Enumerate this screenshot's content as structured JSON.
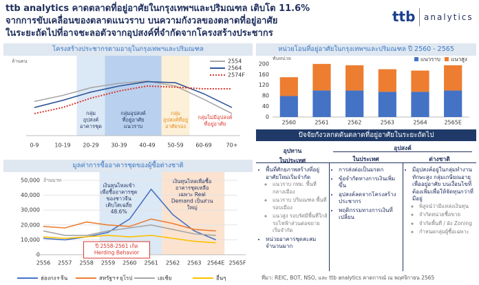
{
  "header": {
    "title": [
      "ttb analytics คาดตลาดที่อยู่อาศัยในกรุงเทพฯและปริมณฑล เติบโต 11.6%",
      "จากการขับเคลื่อนของตลาดแนวราบ บนความกังวลของตลาดที่อยู่อาศัย",
      "ในระยะถัดไปที่อาจชะลอตัวจากอุปสงค์ที่จำกัดจากโครงสร้างประชากร"
    ],
    "logo": {
      "brand": "ttb",
      "product": "analytics"
    }
  },
  "chart_data": [
    {
      "type": "line",
      "title": "โครงสร้างประชากรตามอายุในกรุงเทพฯและปริมณฑล",
      "ylabel": "ล้านคน",
      "categories": [
        "0-9",
        "10-19",
        "20-29",
        "30-39",
        "40-49",
        "50-59",
        "60-69",
        "70+"
      ],
      "ylim": [
        0.6,
        1.9
      ],
      "legend": "top-right",
      "series": [
        {
          "name": "2554",
          "color": "#a6a6a6",
          "style": "solid",
          "values": [
            1.22,
            1.33,
            1.47,
            1.55,
            1.59,
            1.5,
            1.26,
            1.0
          ]
        },
        {
          "name": "2564",
          "color": "#2f5597",
          "style": "solid",
          "values": [
            1.11,
            1.24,
            1.39,
            1.5,
            1.58,
            1.56,
            1.36,
            1.11
          ]
        },
        {
          "name": "2574F",
          "color": "#d9342b",
          "style": "dotted",
          "values": [
            1.0,
            1.11,
            1.28,
            1.41,
            1.5,
            1.48,
            1.45,
            1.45
          ]
        }
      ],
      "annotations": [
        {
          "text": [
            "กลุ่ม",
            "อุปสงค์",
            "อาคารชุด"
          ],
          "color": "#1f2f5c"
        },
        {
          "text": [
            "กลุ่มอุปสงค์",
            "ที่อยู่อาศัย",
            "แนวราบ"
          ],
          "color": "#1f2f5c"
        },
        {
          "text": [
            "กลุ่ม",
            "อุปสงค์ที่อยู่",
            "อาศัยรอง"
          ],
          "color": "#e08a1e"
        },
        {
          "text": [
            "กลุ่มไม่มีอุปสงค์",
            "ที่อยู่อาศัย"
          ],
          "color": "#d9342b"
        }
      ]
    },
    {
      "type": "bar",
      "stacked": true,
      "title": "หน่วยโอนที่อยู่อาศัยในกรุงเทพฯและปริมณฑล ปี 2560 - 2565",
      "ylabel": "พันหน่วย",
      "categories": [
        "2560",
        "2561",
        "2562",
        "2563",
        "2564",
        "2565E"
      ],
      "ylim": [
        0,
        210
      ],
      "yticks": [
        0,
        40,
        80,
        120,
        160,
        200
      ],
      "legend": "top-right",
      "series": [
        {
          "name": "แนวราบ",
          "color": "#4472c4",
          "values": [
            79,
            100,
            100,
            95,
            95,
            100
          ]
        },
        {
          "name": "แนวสูง",
          "color": "#ed7d31",
          "values": [
            71,
            100,
            95,
            85,
            80,
            95
          ]
        }
      ]
    },
    {
      "type": "line",
      "title": "มูลค่าการซื้ออาคารชุดของผู้ซื้อต่างชาติ",
      "ylabel": "ล้านบาท",
      "categories": [
        "2556",
        "2557",
        "2558",
        "2559",
        "2560",
        "2561",
        "2562",
        "2563",
        "2564E",
        "2565F"
      ],
      "ylim": [
        0,
        50000
      ],
      "yticks": [
        0,
        {
          "value": 10000,
          "label": "10,000"
        },
        {
          "value": 20000,
          "label": "20,000"
        },
        {
          "value": 30000,
          "label": "30,000"
        },
        {
          "value": 40000,
          "label": "40,000"
        },
        {
          "value": 50000,
          "label": "50,000"
        }
      ],
      "grid": true,
      "legend": "bottom",
      "series": [
        {
          "name": "ฮ่องกง+จีน",
          "color": "#4472c4",
          "style": "solid",
          "values": [
            11000,
            10000,
            12000,
            15000,
            24000,
            44000,
            27000,
            16000,
            10000,
            null
          ]
        },
        {
          "name": "สหรัฐฯ+ยุโรป",
          "color": "#ed7d31",
          "style": "solid",
          "values": [
            19000,
            18000,
            22000,
            20000,
            19000,
            24000,
            21000,
            17000,
            16000,
            null
          ]
        },
        {
          "name": "เอเชีย",
          "color": "#a5a5a5",
          "style": "solid",
          "values": [
            16000,
            13000,
            13000,
            16000,
            18000,
            20000,
            17000,
            14000,
            13000,
            null
          ]
        },
        {
          "name": "อื่นๆ",
          "color": "#ffc000",
          "style": "solid",
          "values": [
            12000,
            11000,
            12000,
            13000,
            12000,
            13000,
            11000,
            9000,
            8000,
            null
          ]
        }
      ],
      "annotations": [
        {
          "text": [
            "เงินทุนไหลเข้า",
            "เพื่อซื้ออาคารชุด",
            "ของชาวจีน",
            "เติบโตเฉลี่ย",
            "48.6%"
          ],
          "color": "#1f2f5c"
        },
        {
          "text": [
            "เงินทุนไหลเพื่อซื้อ",
            "อาคารชุดเหลือ",
            "เฉพาะ Real",
            "Demand เป็นส่วน",
            "ใหญ่"
          ],
          "color": "#1f2f5c"
        },
        {
          "text": [
            "ปี 2558-2561 เกิด",
            "Herding Behavior"
          ],
          "color": "#d9342b"
        }
      ]
    }
  ],
  "table": {
    "title": "ปัจจัยกังวลกดดันตลาดที่อยู่อาศัยในระยะถัดไป",
    "supply_header": [
      "อุปทาน",
      "ในประเทศ"
    ],
    "demand_header": "อุปสงค์",
    "demand_subheaders": [
      "ในประเทศ",
      "ต่างชาติ"
    ],
    "columns": [
      [
        {
          "text": "พื้นที่ศักยภาพสร้างที่อยู่อาศัยใหม่เริ่มจำกัด",
          "sub": [
            "แนวราบ กทม. พื้นที่กลางเมือง",
            "แนวราบ ปริมณฑล พื้นที่รอบเมือง",
            "แนวสูง รอบรัศมีพื้นที่ใกล้รถไฟฟ้าส่วนต่อขยายเริ่มจำกัด"
          ]
        },
        {
          "text": "หน่วยอาคารชุดสะสมจำนวนมาก",
          "sub": []
        }
      ],
      [
        {
          "text": "การส่งต่อเป็นมรดก",
          "sub": []
        },
        {
          "text": "ข้อจำกัดทางการเงินเพิ่มขึ้น",
          "sub": []
        },
        {
          "text": "อุปสงค์ลดจากโครงสร้างประชากร",
          "sub": []
        },
        {
          "text": "พฤติกรรมทางการเงินที่เปลี่ยน",
          "sub": []
        }
      ],
      [
        {
          "text": "มีอุปสงค์อยู่ในกลุ่มทำงานทักษะสูง กลุ่มเกษียณอายุเพื่ออยู่อาศัย บนเงื่อนไขที่ต้องเพิ่มเพื่อให้จัดทุนกว่าที่มีอยู่",
          "sub": [
            "พิสูจน์ว่ามีแหล่งเงินทุน",
            "จำกัดหน่วยซื้อขาย",
            "จำกัดพื้นที่ / ผัง Zoning",
            "กำหนดกลุ่มผู้ซื้อเฉพาะ"
          ]
        }
      ]
    ]
  },
  "source": "ที่มา: REIC, BOT, NSO, และ ttb analytics คาดการณ์ ณ พฤศจิกายน 2565"
}
